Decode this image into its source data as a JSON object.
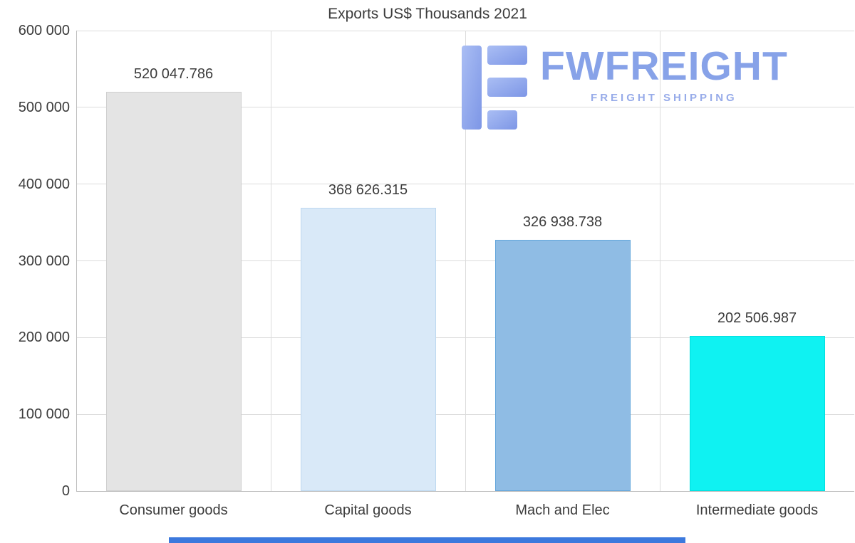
{
  "title": "Exports US$ Thousands 2021",
  "chart_data": {
    "type": "bar",
    "title": "Exports US$ Thousands 2021",
    "xlabel": "",
    "ylabel": "",
    "categories": [
      "Consumer goods",
      "Capital goods",
      "Mach and Elec",
      "Intermediate goods"
    ],
    "values": [
      520047.786,
      368626.315,
      326938.738,
      202506.987
    ],
    "value_labels": [
      "520 047.786",
      "368 626.315",
      "326 938.738",
      "202 506.987"
    ],
    "bar_colors": [
      "#e4e4e4",
      "#d9e9f8",
      "#8fbce4",
      "#0ff2f2"
    ],
    "bar_borders": [
      "#cfcfcf",
      "#bed8f0",
      "#63a6db",
      "#00dede"
    ],
    "ylim": [
      0,
      600000
    ],
    "ytick_step": 100000,
    "ytick_labels": [
      "0",
      "100 000",
      "200 000",
      "300 000",
      "400 000",
      "500 000",
      "600 000"
    ],
    "grid": "horizontal gridlines plus vertical category separators",
    "legend": "none"
  },
  "watermark": {
    "brand": "FWFREIGHT",
    "tagline": "FREIGHT SHIPPING",
    "color": "#87a2e8"
  },
  "colors": {
    "background": "#ffffff",
    "gridline": "#dcdcdc",
    "axis_line": "#bdbdbd",
    "text": "#3c3c3c",
    "bottom_strip": "#3c79dd"
  }
}
